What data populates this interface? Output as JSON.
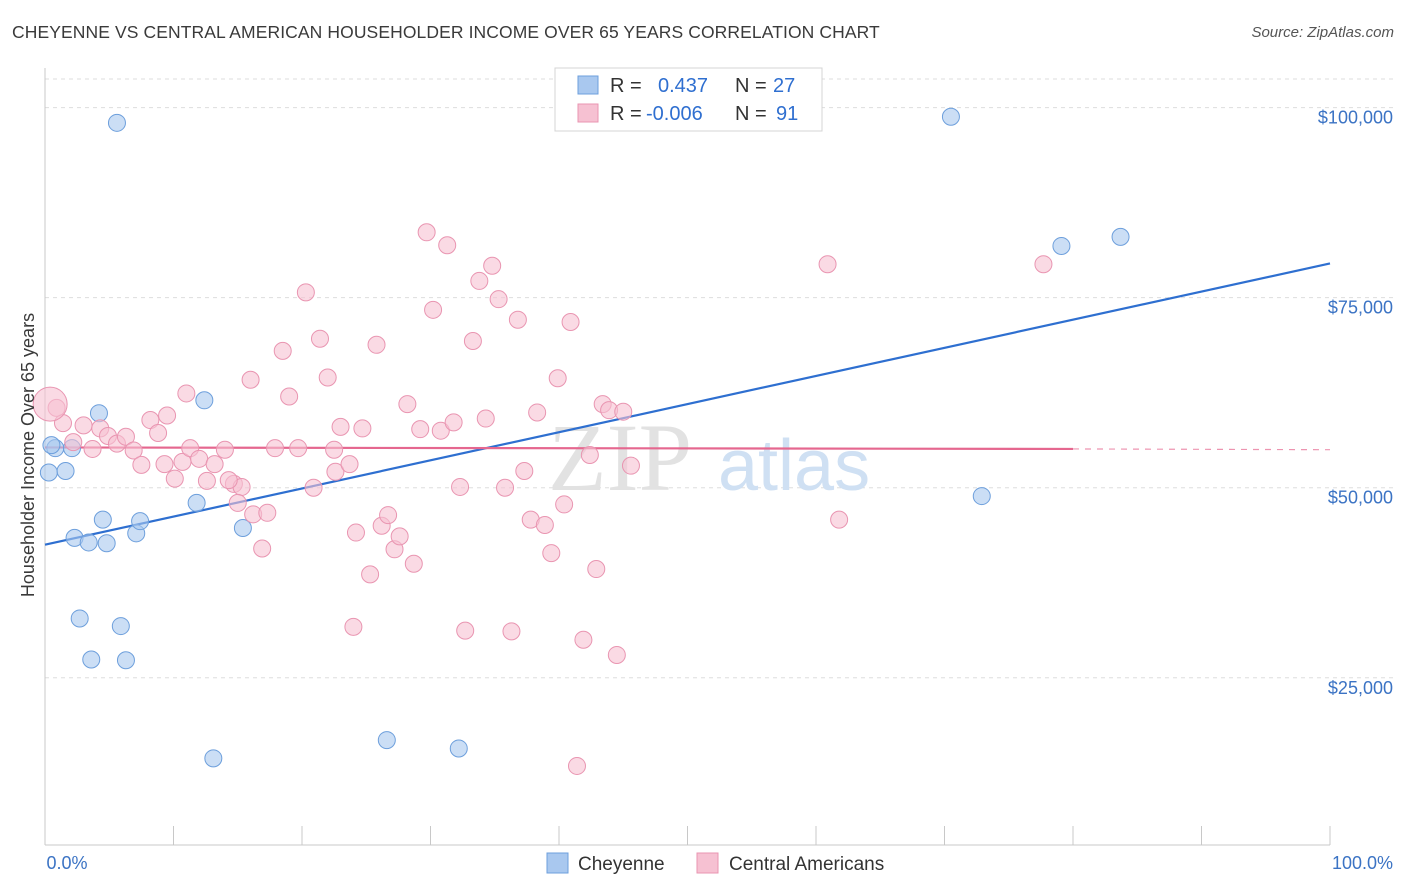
{
  "title": "CHEYENNE VS CENTRAL AMERICAN HOUSEHOLDER INCOME OVER 65 YEARS CORRELATION CHART",
  "source": "Source: ZipAtlas.com",
  "watermark": {
    "zip": "ZIP",
    "atlas": "atlas"
  },
  "colors": {
    "blue_fill": "#a9c8ef",
    "blue_stroke": "#6d9fdc",
    "blue_line": "#2e6fd0",
    "pink_fill": "#f6c1d2",
    "pink_stroke": "#e995b1",
    "pink_line": "#e5678f",
    "tick": "#3b73c4",
    "grid": "#dddddd"
  },
  "legend": {
    "r_label": "R =",
    "n_label": "N =",
    "rows": [
      {
        "series": "Cheyenne",
        "r": "0.437",
        "n": "27"
      },
      {
        "series": "Central Americans",
        "r": "-0.006",
        "n": "91"
      }
    ]
  },
  "chart_data": {
    "type": "scatter",
    "xlabel": "",
    "ylabel": "Householder Income Over 65 years",
    "xlim": [
      0,
      100
    ],
    "ylim": [
      3000,
      106000
    ],
    "x_tick_labels": [
      "0.0%",
      "100.0%"
    ],
    "y_ticks": [
      {
        "value": 25000,
        "label": "$25,000"
      },
      {
        "value": 50000,
        "label": "$50,000"
      },
      {
        "value": 75000,
        "label": "$75,000"
      },
      {
        "value": 100000,
        "label": "$100,000"
      }
    ],
    "series": [
      {
        "name": "Cheyenne",
        "color": "blue",
        "trend": {
          "x": [
            0,
            100
          ],
          "y": [
            42500,
            79500
          ]
        },
        "points": [
          [
            0.3,
            52000
          ],
          [
            0.8,
            55200
          ],
          [
            1.6,
            52200
          ],
          [
            2.1,
            55200
          ],
          [
            4.2,
            59800
          ],
          [
            2.3,
            43400
          ],
          [
            3.4,
            42800
          ],
          [
            4.5,
            45800
          ],
          [
            4.8,
            42700
          ],
          [
            7.1,
            44000
          ],
          [
            7.4,
            45600
          ],
          [
            11.8,
            48000
          ],
          [
            15.4,
            44700
          ],
          [
            12.4,
            61500
          ],
          [
            2.7,
            32800
          ],
          [
            5.9,
            31800
          ],
          [
            3.6,
            27400
          ],
          [
            6.3,
            27300
          ],
          [
            13.1,
            14400
          ],
          [
            26.6,
            16800
          ],
          [
            32.2,
            15700
          ],
          [
            5.6,
            98000
          ],
          [
            70.5,
            98800
          ],
          [
            79.1,
            81800
          ],
          [
            83.7,
            83000
          ],
          [
            72.9,
            48900
          ],
          [
            0.5,
            55600
          ]
        ]
      },
      {
        "name": "Central Americans",
        "color": "pink",
        "trend": {
          "x": [
            0,
            80
          ],
          "y": [
            55300,
            55100
          ]
        },
        "dash_extension": {
          "x": [
            80,
            100
          ],
          "y": [
            55100,
            55000
          ]
        },
        "points": [
          [
            0.9,
            60500
          ],
          [
            1.4,
            58500
          ],
          [
            2.2,
            56000
          ],
          [
            3.0,
            58200
          ],
          [
            3.7,
            55100
          ],
          [
            4.3,
            57800
          ],
          [
            4.9,
            56800
          ],
          [
            5.6,
            55800
          ],
          [
            6.3,
            56700
          ],
          [
            6.9,
            54900
          ],
          [
            7.5,
            53000
          ],
          [
            8.2,
            58900
          ],
          [
            8.8,
            57200
          ],
          [
            9.3,
            53100
          ],
          [
            10.1,
            51200
          ],
          [
            10.7,
            53400
          ],
          [
            11.3,
            55200
          ],
          [
            12.0,
            53800
          ],
          [
            12.6,
            50900
          ],
          [
            13.2,
            53100
          ],
          [
            14.0,
            55000
          ],
          [
            14.7,
            50500
          ],
          [
            15.3,
            50100
          ],
          [
            16.2,
            46500
          ],
          [
            16.9,
            42000
          ],
          [
            17.3,
            46700
          ],
          [
            17.9,
            55200
          ],
          [
            18.5,
            68000
          ],
          [
            19.0,
            62000
          ],
          [
            19.7,
            55200
          ],
          [
            20.3,
            75700
          ],
          [
            20.9,
            50000
          ],
          [
            21.4,
            69600
          ],
          [
            22.0,
            64500
          ],
          [
            22.6,
            52100
          ],
          [
            23.0,
            58000
          ],
          [
            23.7,
            53100
          ],
          [
            24.2,
            44100
          ],
          [
            24.7,
            57800
          ],
          [
            25.3,
            38600
          ],
          [
            25.8,
            68800
          ],
          [
            26.2,
            45000
          ],
          [
            26.7,
            46400
          ],
          [
            27.2,
            41900
          ],
          [
            27.6,
            43600
          ],
          [
            28.2,
            61000
          ],
          [
            28.7,
            40000
          ],
          [
            29.2,
            57700
          ],
          [
            29.7,
            83600
          ],
          [
            30.2,
            73400
          ],
          [
            30.8,
            57500
          ],
          [
            31.3,
            81900
          ],
          [
            31.8,
            58600
          ],
          [
            32.3,
            50100
          ],
          [
            32.7,
            31200
          ],
          [
            33.3,
            69300
          ],
          [
            33.8,
            77200
          ],
          [
            34.3,
            59100
          ],
          [
            34.8,
            79200
          ],
          [
            35.3,
            74800
          ],
          [
            35.8,
            50000
          ],
          [
            36.3,
            31100
          ],
          [
            36.8,
            72100
          ],
          [
            37.3,
            52200
          ],
          [
            37.8,
            45800
          ],
          [
            38.3,
            59900
          ],
          [
            38.9,
            45100
          ],
          [
            39.4,
            41400
          ],
          [
            39.9,
            64400
          ],
          [
            40.4,
            47800
          ],
          [
            40.9,
            71800
          ],
          [
            41.4,
            13400
          ],
          [
            41.9,
            30000
          ],
          [
            42.4,
            54300
          ],
          [
            42.9,
            39300
          ],
          [
            43.4,
            61000
          ],
          [
            43.9,
            60200
          ],
          [
            44.5,
            28000
          ],
          [
            45.0,
            60000
          ],
          [
            45.6,
            52900
          ],
          [
            14.3,
            51000
          ],
          [
            15.0,
            48000
          ],
          [
            11.0,
            62400
          ],
          [
            9.5,
            59500
          ],
          [
            16.0,
            64200
          ],
          [
            24.0,
            31700
          ],
          [
            22.5,
            55000
          ],
          [
            60.9,
            79400
          ],
          [
            61.8,
            45800
          ],
          [
            77.7,
            79400
          ],
          [
            0.4,
            61000
          ]
        ]
      }
    ]
  },
  "bottom_legend": [
    "Cheyenne",
    "Central Americans"
  ]
}
